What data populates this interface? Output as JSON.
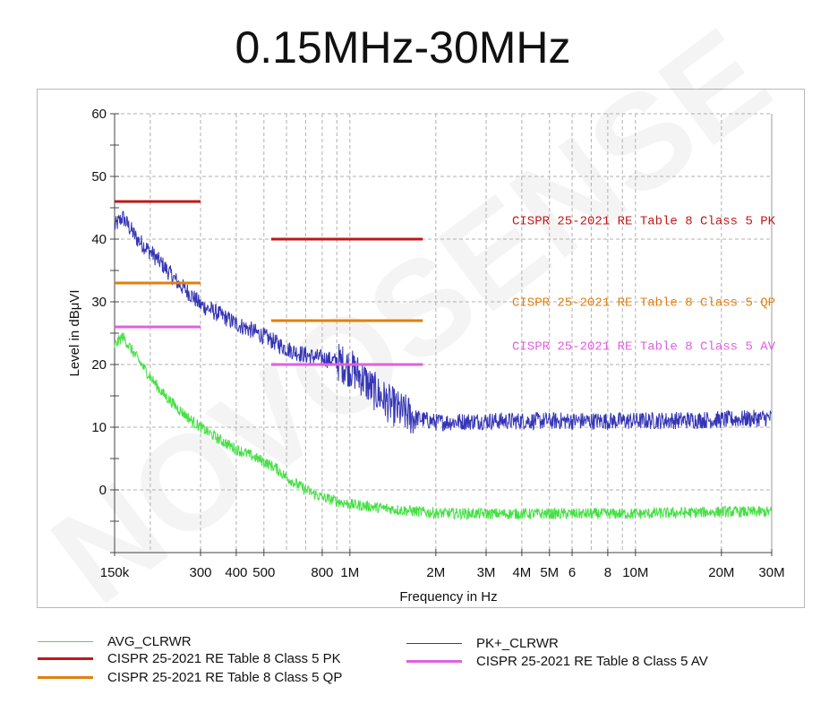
{
  "page": {
    "title": "0.15MHz-30MHz",
    "watermark": "NOVOSENSE"
  },
  "chart_data": {
    "type": "line",
    "title": "0.15MHz-30MHz",
    "xlabel": "Frequency in Hz",
    "ylabel": "Level in dBμVI",
    "xscale": "log",
    "xlim_mhz": [
      0.15,
      30
    ],
    "ylim": [
      -10,
      60
    ],
    "yticks": [
      0,
      10,
      20,
      30,
      40,
      50,
      60
    ],
    "xticks": [
      {
        "mhz": 0.15,
        "label": "150k"
      },
      {
        "mhz": 0.3,
        "label": "300"
      },
      {
        "mhz": 0.4,
        "label": "400"
      },
      {
        "mhz": 0.5,
        "label": "500"
      },
      {
        "mhz": 0.8,
        "label": "800"
      },
      {
        "mhz": 1,
        "label": "1M"
      },
      {
        "mhz": 2,
        "label": "2M"
      },
      {
        "mhz": 3,
        "label": "3M"
      },
      {
        "mhz": 4,
        "label": "4M"
      },
      {
        "mhz": 5,
        "label": "5M"
      },
      {
        "mhz": 6,
        "label": "6"
      },
      {
        "mhz": 8,
        "label": "8"
      },
      {
        "mhz": 10,
        "label": "10M"
      },
      {
        "mhz": 20,
        "label": "20M"
      },
      {
        "mhz": 30,
        "label": "30M"
      }
    ],
    "grid": true,
    "series": [
      {
        "name": "PK+_CLRWR",
        "color": "#3535b5",
        "kind": "trace",
        "points_mhz_db": [
          [
            0.15,
            42
          ],
          [
            0.16,
            43.5
          ],
          [
            0.18,
            40
          ],
          [
            0.2,
            38
          ],
          [
            0.22,
            36
          ],
          [
            0.25,
            33
          ],
          [
            0.28,
            31
          ],
          [
            0.3,
            29.5
          ],
          [
            0.35,
            28
          ],
          [
            0.4,
            26.5
          ],
          [
            0.45,
            25.5
          ],
          [
            0.5,
            24.5
          ],
          [
            0.55,
            23.5
          ],
          [
            0.6,
            22.5
          ],
          [
            0.7,
            21.5
          ],
          [
            0.8,
            21
          ],
          [
            0.9,
            20.5
          ],
          [
            1.0,
            19.5
          ],
          [
            1.1,
            18
          ],
          [
            1.2,
            16
          ],
          [
            1.35,
            14
          ],
          [
            1.5,
            12.5
          ],
          [
            1.7,
            11.5
          ],
          [
            2.0,
            10.8
          ],
          [
            3,
            11
          ],
          [
            5,
            11
          ],
          [
            10,
            11
          ],
          [
            20,
            11.2
          ],
          [
            30,
            11.5
          ]
        ],
        "noise_db": 1.4
      },
      {
        "name": "AVG_CLRWR",
        "color": "#44e044",
        "kind": "trace",
        "points_mhz_db": [
          [
            0.15,
            23
          ],
          [
            0.16,
            24.5
          ],
          [
            0.18,
            21
          ],
          [
            0.2,
            18
          ],
          [
            0.22,
            15.5
          ],
          [
            0.25,
            13
          ],
          [
            0.28,
            11
          ],
          [
            0.3,
            10
          ],
          [
            0.35,
            8
          ],
          [
            0.4,
            6.5
          ],
          [
            0.45,
            5.5
          ],
          [
            0.5,
            4.5
          ],
          [
            0.55,
            3.5
          ],
          [
            0.6,
            2
          ],
          [
            0.7,
            0
          ],
          [
            0.8,
            -1.2
          ],
          [
            1.0,
            -2.3
          ],
          [
            1.5,
            -3.2
          ],
          [
            2,
            -3.7
          ],
          [
            3,
            -3.8
          ],
          [
            5,
            -3.8
          ],
          [
            10,
            -3.8
          ],
          [
            20,
            -3.5
          ],
          [
            30,
            -3.5
          ]
        ],
        "noise_db": 0.9
      },
      {
        "name": "CISPR 25-2021 RE Table 8 Class 5 PK",
        "color": "#c01818",
        "kind": "limit",
        "segments": [
          {
            "from_mhz": 0.15,
            "to_mhz": 0.3,
            "db": 46
          },
          {
            "from_mhz": 0.53,
            "to_mhz": 1.8,
            "db": 40
          }
        ],
        "label": "CISPR 25-2021 RE Table 8 Class 5 PK",
        "label_db": 41.5
      },
      {
        "name": "CISPR 25-2021 RE Table 8 Class 5 QP",
        "color": "#e08010",
        "kind": "limit",
        "segments": [
          {
            "from_mhz": 0.15,
            "to_mhz": 0.3,
            "db": 33
          },
          {
            "from_mhz": 0.53,
            "to_mhz": 1.8,
            "db": 27
          }
        ],
        "label": "CISPR 25-2021 RE Table 8 Class 5 QP",
        "label_db": 28.5
      },
      {
        "name": "CISPR 25-2021 RE Table 8 Class 5 AV",
        "color": "#e060e0",
        "kind": "limit",
        "segments": [
          {
            "from_mhz": 0.15,
            "to_mhz": 0.3,
            "db": 26
          },
          {
            "from_mhz": 0.53,
            "to_mhz": 1.8,
            "db": 20
          }
        ],
        "label": "CISPR 25-2021 RE Table 8 Class 5 AV",
        "label_db": 21.5
      }
    ]
  },
  "legend": {
    "items": [
      {
        "label": "AVG_CLRWR",
        "color": "#44e044"
      },
      {
        "label": "CISPR 25-2021 RE Table 8 Class 5 PK",
        "color": "#c01818"
      },
      {
        "label": "CISPR 25-2021 RE Table 8 Class 5 QP",
        "color": "#e08010"
      },
      {
        "label": "PK+_CLRWR",
        "color": "#3535b5"
      },
      {
        "label": "CISPR 25-2021 RE Table 8 Class 5 AV",
        "color": "#e060e0"
      }
    ]
  }
}
